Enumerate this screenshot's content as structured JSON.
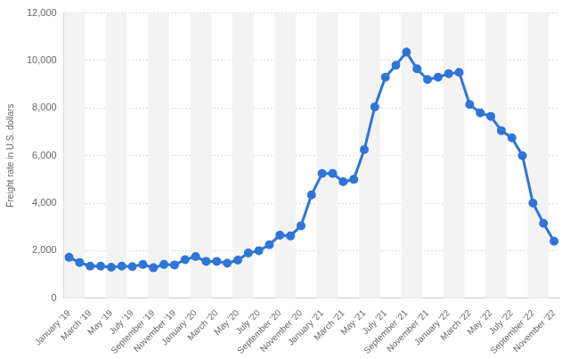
{
  "chart_data": {
    "type": "line",
    "y_label": "Freight rate in U.S. dollars",
    "categories": [
      "January '19",
      null,
      "March '19",
      null,
      "May '19",
      null,
      "July '19",
      null,
      "September '19",
      null,
      "November '19",
      null,
      "January '20",
      null,
      "March '20",
      null,
      "May '20",
      null,
      "July '20",
      null,
      "September '20",
      null,
      "November '20",
      null,
      "January '21",
      null,
      "March '21",
      null,
      "May '21",
      null,
      "July '21",
      null,
      "September '21",
      null,
      "November '21",
      null,
      "January '22",
      null,
      "March '22",
      null,
      "May '22",
      null,
      "July '22",
      null,
      "September '22",
      null,
      "November '22"
    ],
    "values": [
      1720,
      1500,
      1350,
      1350,
      1300,
      1350,
      1330,
      1420,
      1280,
      1420,
      1400,
      1620,
      1750,
      1550,
      1550,
      1470,
      1600,
      1900,
      2000,
      2250,
      2650,
      2620,
      3050,
      4350,
      5250,
      5250,
      4900,
      5000,
      6250,
      8050,
      9300,
      9800,
      10350,
      9650,
      9200,
      9300,
      9450,
      9500,
      8150,
      7800,
      7650,
      7050,
      6750,
      6000,
      4000,
      3150,
      2400
    ],
    "color": "#2f75d8",
    "marker": "circle",
    "ylim": [
      0,
      12000
    ],
    "yticks": [
      0,
      {
        "value": 2000,
        "label": "2,000"
      },
      {
        "value": 4000,
        "label": "4,000"
      },
      {
        "value": 6000,
        "label": "6,000"
      },
      {
        "value": 8000,
        "label": "8,000"
      },
      {
        "value": 10000,
        "label": "10,000"
      },
      {
        "value": 12000,
        "label": "12,000"
      }
    ],
    "grid": true
  }
}
